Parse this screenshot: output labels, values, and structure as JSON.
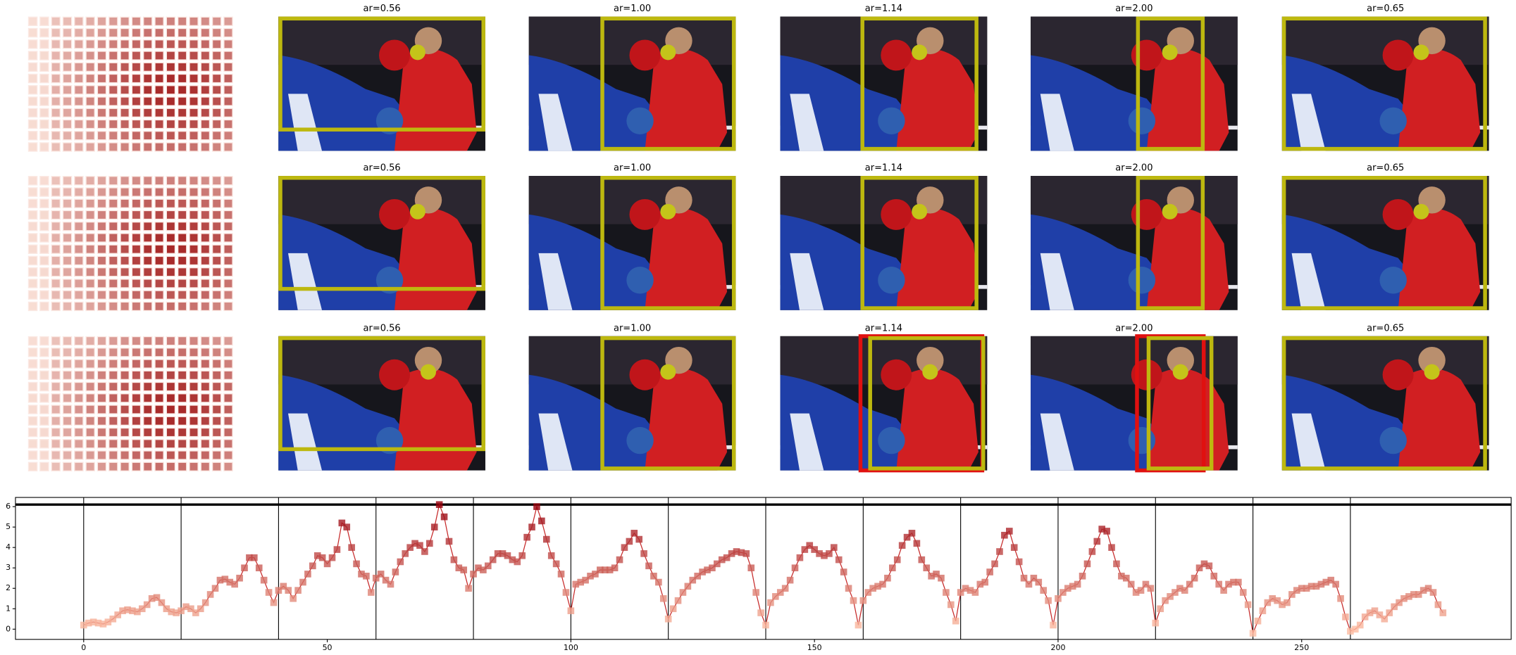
{
  "panels": [
    {
      "titles": [
        "ar=0.56",
        "ar=1.00",
        "ar=1.14",
        "ar=2.00",
        "ar=0.65"
      ]
    },
    {
      "titles": [
        "ar=0.56",
        "ar=1.00",
        "ar=1.14",
        "ar=2.00",
        "ar=0.65"
      ]
    },
    {
      "titles": [
        "ar=0.56",
        "ar=1.00",
        "ar=1.14",
        "ar=2.00",
        "ar=0.65"
      ]
    }
  ],
  "chart_data": {
    "type": "line",
    "x": [
      0,
      1,
      2,
      3,
      4,
      5,
      6,
      7,
      8,
      9,
      10,
      11,
      12,
      13,
      14,
      15,
      16,
      17,
      18,
      19,
      20,
      21,
      22,
      23,
      24,
      25,
      26,
      27,
      28,
      29,
      30,
      31,
      32,
      33,
      34,
      35,
      36,
      37,
      38,
      39,
      40,
      41,
      42,
      43,
      44,
      45,
      46,
      47,
      48,
      49,
      50,
      51,
      52,
      53,
      54,
      55,
      56,
      57,
      58,
      59,
      60,
      61,
      62,
      63,
      64,
      65,
      66,
      67,
      68,
      69,
      70,
      71,
      72,
      73,
      74,
      75,
      76,
      77,
      78,
      79,
      80,
      81,
      82,
      83,
      84,
      85,
      86,
      87,
      88,
      89,
      90,
      91,
      92,
      93,
      94,
      95,
      96,
      97,
      98,
      99,
      100,
      101,
      102,
      103,
      104,
      105,
      106,
      107,
      108,
      109,
      110,
      111,
      112,
      113,
      114,
      115,
      116,
      117,
      118,
      119,
      120,
      121,
      122,
      123,
      124,
      125,
      126,
      127,
      128,
      129,
      130,
      131,
      132,
      133,
      134,
      135,
      136,
      137,
      138,
      139,
      140,
      141,
      142,
      143,
      144,
      145,
      146,
      147,
      148,
      149,
      150,
      151,
      152,
      153,
      154,
      155,
      156,
      157,
      158,
      159,
      160,
      161,
      162,
      163,
      164,
      165,
      166,
      167,
      168,
      169,
      170,
      171,
      172,
      173,
      174,
      175,
      176,
      177,
      178,
      179,
      180,
      181,
      182,
      183,
      184,
      185,
      186,
      187,
      188,
      189,
      190,
      191,
      192,
      193,
      194,
      195,
      196,
      197,
      198,
      199,
      200,
      201,
      202,
      203,
      204,
      205,
      206,
      207,
      208,
      209,
      210,
      211,
      212,
      213,
      214,
      215,
      216,
      217,
      218,
      219,
      220,
      221,
      222,
      223,
      224,
      225,
      226,
      227,
      228,
      229,
      230,
      231,
      232,
      233,
      234,
      235,
      236,
      237,
      238,
      239,
      240,
      241,
      242,
      243,
      244,
      245,
      246,
      247,
      248,
      249,
      250,
      251,
      252,
      253,
      254,
      255,
      256,
      257,
      258,
      259,
      260,
      261,
      262,
      263,
      264,
      265,
      266,
      267,
      268,
      269,
      270,
      271,
      272,
      273,
      274,
      275,
      276,
      277,
      278,
      279
    ],
    "values": [
      0.2,
      0.3,
      0.35,
      0.3,
      0.25,
      0.35,
      0.5,
      0.7,
      0.9,
      0.95,
      0.9,
      0.85,
      1.0,
      1.2,
      1.5,
      1.55,
      1.3,
      1.0,
      0.85,
      0.8,
      0.9,
      1.1,
      1.0,
      0.8,
      1.0,
      1.3,
      1.7,
      2.0,
      2.4,
      2.45,
      2.3,
      2.2,
      2.5,
      3.0,
      3.5,
      3.5,
      3.0,
      2.4,
      1.8,
      1.3,
      1.9,
      2.1,
      1.9,
      1.5,
      1.9,
      2.3,
      2.7,
      3.1,
      3.6,
      3.5,
      3.2,
      3.5,
      3.9,
      5.2,
      5.0,
      4.0,
      3.2,
      2.7,
      2.6,
      1.8,
      2.5,
      2.7,
      2.4,
      2.2,
      2.8,
      3.3,
      3.7,
      4.0,
      4.2,
      4.1,
      3.8,
      4.2,
      5.0,
      6.1,
      5.5,
      4.3,
      3.4,
      3.0,
      2.9,
      2.0,
      2.7,
      3.0,
      2.9,
      3.1,
      3.4,
      3.7,
      3.7,
      3.6,
      3.4,
      3.3,
      3.6,
      4.5,
      5.0,
      6.0,
      5.3,
      4.4,
      3.6,
      3.2,
      2.7,
      1.8,
      0.9,
      2.2,
      2.3,
      2.4,
      2.6,
      2.7,
      2.9,
      2.9,
      2.9,
      3.0,
      3.4,
      4.0,
      4.3,
      4.7,
      4.4,
      3.7,
      3.1,
      2.6,
      2.3,
      1.5,
      0.5,
      1.0,
      1.4,
      1.8,
      2.1,
      2.4,
      2.6,
      2.8,
      2.9,
      3.0,
      3.2,
      3.4,
      3.5,
      3.7,
      3.8,
      3.75,
      3.7,
      3.0,
      1.8,
      0.8,
      0.2,
      1.3,
      1.6,
      1.8,
      2.0,
      2.4,
      3.0,
      3.5,
      3.9,
      4.1,
      3.9,
      3.7,
      3.6,
      3.7,
      4.0,
      3.4,
      2.8,
      2.0,
      1.4,
      0.2,
      1.4,
      1.8,
      2.0,
      2.1,
      2.2,
      2.5,
      3.0,
      3.4,
      4.1,
      4.5,
      4.7,
      4.2,
      3.4,
      3.0,
      2.6,
      2.7,
      2.5,
      1.8,
      1.2,
      0.4,
      1.8,
      2.0,
      1.9,
      1.8,
      2.2,
      2.3,
      2.8,
      3.2,
      3.8,
      4.6,
      4.8,
      4.0,
      3.3,
      2.5,
      2.2,
      2.5,
      2.3,
      1.9,
      1.4,
      0.2,
      1.5,
      1.8,
      2.0,
      2.1,
      2.2,
      2.6,
      3.2,
      3.8,
      4.3,
      4.9,
      4.8,
      4.0,
      3.2,
      2.6,
      2.5,
      2.2,
      1.8,
      1.9,
      2.2,
      2.0,
      0.3,
      1.0,
      1.4,
      1.6,
      1.8,
      2.0,
      1.9,
      2.2,
      2.5,
      3.0,
      3.2,
      3.1,
      2.6,
      2.2,
      1.9,
      2.2,
      2.3,
      2.3,
      1.8,
      1.2,
      -0.2,
      0.4,
      0.9,
      1.3,
      1.5,
      1.4,
      1.2,
      1.3,
      1.7,
      1.9,
      2.0,
      2.0,
      2.1,
      2.1,
      2.2,
      2.3,
      2.4,
      2.2,
      1.5,
      0.6,
      -0.1,
      0.0,
      0.2,
      0.6,
      0.8,
      0.9,
      0.7,
      0.5,
      0.8,
      1.1,
      1.3,
      1.5,
      1.6,
      1.7,
      1.7,
      1.9,
      2.0,
      1.8,
      1.2,
      0.8
    ],
    "color": "#c62828",
    "vlines": [
      0,
      20,
      40,
      60,
      80,
      100,
      120,
      140,
      160,
      180,
      200,
      220,
      240,
      260
    ],
    "hline": 6.1,
    "xlim": [
      -14,
      293
    ],
    "ylim": [
      -0.5,
      6.45
    ],
    "xticks": [
      0,
      50,
      100,
      150,
      200,
      250
    ],
    "yticks": [
      0,
      1,
      2,
      3,
      4,
      5,
      6
    ]
  }
}
